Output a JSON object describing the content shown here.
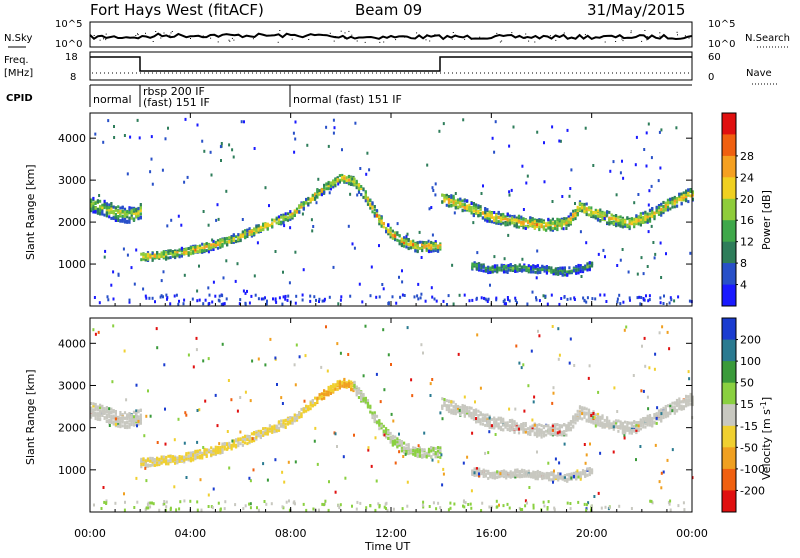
{
  "header": {
    "title": "Fort Hays West (fitACF)",
    "beam": "Beam 09",
    "date": "31/May/2015"
  },
  "sky_panel": {
    "left_label": "N.Sky",
    "right_label": "N.Search",
    "left_ticks": [
      "10^5",
      "10^0"
    ],
    "right_ticks": [
      "10^5",
      "10^0"
    ]
  },
  "freq_panel": {
    "left_label_1": "Freq.",
    "left_label_2": "[MHz]",
    "right_label": "Nave",
    "left_ticks": [
      "18",
      "8"
    ],
    "right_ticks": [
      "60",
      "0"
    ]
  },
  "cpid_panel": {
    "label": "CPID",
    "segments": [
      {
        "text": "normal",
        "start_h": 0,
        "end_h": 2
      },
      {
        "text": "rbsp 200 IF",
        "start_h": 2,
        "end_h": 8
      },
      {
        "text": "(fast) 151 IF",
        "start_h": 2,
        "end_h": 8
      },
      {
        "text": "normal (fast) 151 IF",
        "start_h": 8,
        "end_h": 24
      }
    ]
  },
  "chart_data": [
    {
      "type": "heatmap",
      "name": "power",
      "ylabel": "Slant Range [km]",
      "ylim": [
        0,
        4600
      ],
      "yticks": [
        1000,
        2000,
        3000,
        4000
      ],
      "xlim": [
        0,
        24
      ],
      "colorbar_label": "Power [dB]",
      "colorbar_ticks": [
        "4",
        "8",
        "12",
        "16",
        "20",
        "24",
        "28"
      ],
      "colormap": [
        "#1a1aff",
        "#2850c8",
        "#2e7d5a",
        "#3fa84a",
        "#8fcc3a",
        "#f0d020",
        "#f5a020",
        "#f06010",
        "#e01010"
      ],
      "bands": [
        {
          "label": "band-early",
          "points": [
            [
              0.0,
              2450
            ],
            [
              0.5,
              2380
            ],
            [
              1.0,
              2250
            ],
            [
              1.5,
              2200
            ],
            [
              2.0,
              2300
            ]
          ],
          "width": 300,
          "intensity": 0.55
        },
        {
          "label": "band-rising",
          "points": [
            [
              2.0,
              1200
            ],
            [
              3.0,
              1250
            ],
            [
              4.0,
              1350
            ],
            [
              5.0,
              1500
            ],
            [
              6.0,
              1700
            ],
            [
              7.0,
              1950
            ],
            [
              8.0,
              2200
            ],
            [
              9.0,
              2700
            ],
            [
              10.0,
              3100
            ],
            [
              10.5,
              3000
            ]
          ],
          "width": 170,
          "intensity": 0.7
        },
        {
          "label": "band-falling",
          "points": [
            [
              10.5,
              3000
            ],
            [
              11.0,
              2600
            ],
            [
              11.5,
              2100
            ],
            [
              12.0,
              1750
            ],
            [
              12.5,
              1550
            ],
            [
              13.0,
              1450
            ],
            [
              14.0,
              1450
            ]
          ],
          "width": 200,
          "intensity": 0.75
        },
        {
          "label": "band-late",
          "points": [
            [
              14.0,
              2600
            ],
            [
              15.0,
              2400
            ],
            [
              16.0,
              2150
            ],
            [
              17.0,
              2050
            ],
            [
              18.0,
              1950
            ],
            [
              19.0,
              2000
            ],
            [
              19.5,
              2400
            ],
            [
              20.5,
              2150
            ],
            [
              21.5,
              2000
            ],
            [
              22.5,
              2250
            ],
            [
              23.5,
              2600
            ],
            [
              24.0,
              2700
            ]
          ],
          "width": 240,
          "intensity": 0.7
        },
        {
          "label": "band-low",
          "points": [
            [
              15.2,
              1000
            ],
            [
              16.0,
              900
            ],
            [
              17.0,
              950
            ],
            [
              18.0,
              900
            ],
            [
              19.0,
              850
            ],
            [
              20.0,
              1000
            ]
          ],
          "width": 150,
          "intensity": 0.35
        }
      ]
    },
    {
      "type": "heatmap",
      "name": "velocity",
      "ylabel": "Slant Range [km]",
      "ylim": [
        0,
        4600
      ],
      "yticks": [
        1000,
        2000,
        3000,
        4000
      ],
      "xlim": [
        0,
        24
      ],
      "xlabel": "Time UT",
      "xticks": [
        "00:00",
        "04:00",
        "08:00",
        "12:00",
        "16:00",
        "20:00",
        "00:00"
      ],
      "colorbar_label": "Velocity [m s",
      "colorbar_label_sup": "-1",
      "colorbar_label_end": "]",
      "colorbar_ticks": [
        "200",
        "100",
        "50",
        "15",
        "-15",
        "-50",
        "-100",
        "-200"
      ],
      "colormap": [
        "#1a3cd0",
        "#2a7a90",
        "#3a9a3a",
        "#8ad040",
        "#c8c8c0",
        "#f0d030",
        "#f0a020",
        "#f06010",
        "#e01010"
      ]
    }
  ]
}
